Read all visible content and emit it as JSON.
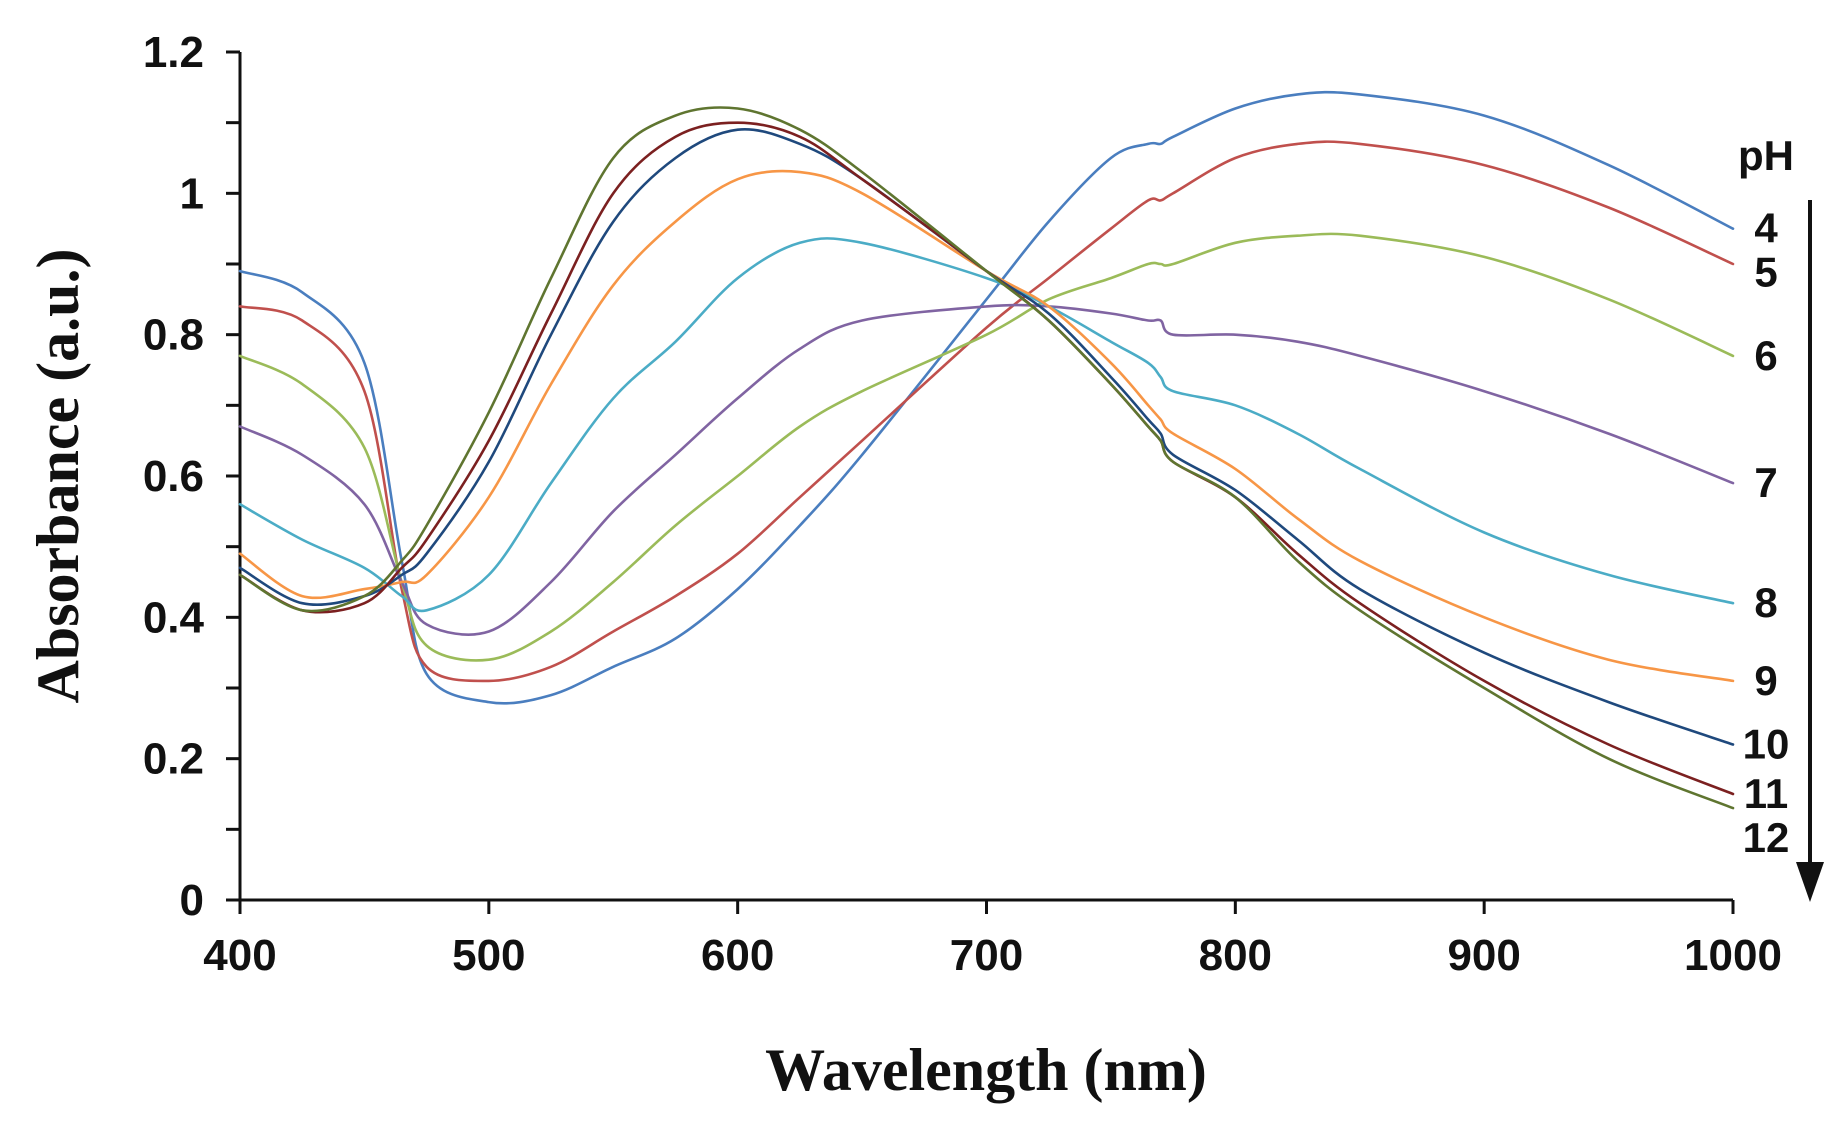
{
  "chart_data": {
    "type": "line",
    "title": "",
    "xlabel": "Wavelength (nm)",
    "ylabel": "Absorbance (a.u.)",
    "xlim": [
      400,
      1000
    ],
    "ylim": [
      0,
      1.2
    ],
    "xticks": [
      400,
      500,
      600,
      700,
      800,
      900,
      1000
    ],
    "xtick_labels": [
      "400",
      "500",
      "600",
      "700",
      "800",
      "900",
      "1000"
    ],
    "yticks": [
      0,
      0.2,
      0.4,
      0.6,
      0.8,
      1,
      1.2
    ],
    "ytick_labels": [
      "0",
      "0.2",
      "0.4",
      "0.6",
      "0.8",
      "1",
      "1.2"
    ],
    "grid": false,
    "legend_title": "pH",
    "legend_placement": "right",
    "x": [
      400,
      425,
      450,
      465,
      475,
      500,
      525,
      550,
      575,
      600,
      625,
      650,
      700,
      725,
      750,
      765,
      770,
      775,
      800,
      825,
      850,
      900,
      950,
      1000
    ],
    "series": [
      {
        "name": "4",
        "color": "#4a7ebf",
        "values": [
          0.89,
          0.86,
          0.76,
          0.48,
          0.32,
          0.28,
          0.29,
          0.33,
          0.37,
          0.44,
          0.53,
          0.63,
          0.85,
          0.96,
          1.05,
          1.07,
          1.07,
          1.08,
          1.12,
          1.14,
          1.14,
          1.11,
          1.04,
          0.95
        ]
      },
      {
        "name": "5",
        "color": "#c0504d",
        "values": [
          0.84,
          0.82,
          0.72,
          0.44,
          0.33,
          0.31,
          0.33,
          0.38,
          0.43,
          0.49,
          0.57,
          0.65,
          0.81,
          0.88,
          0.95,
          0.99,
          0.99,
          1.0,
          1.05,
          1.07,
          1.07,
          1.04,
          0.98,
          0.9
        ]
      },
      {
        "name": "6",
        "color": "#9bbb59",
        "values": [
          0.77,
          0.73,
          0.64,
          0.45,
          0.36,
          0.34,
          0.38,
          0.45,
          0.53,
          0.6,
          0.67,
          0.72,
          0.8,
          0.85,
          0.88,
          0.9,
          0.9,
          0.9,
          0.93,
          0.94,
          0.94,
          0.91,
          0.85,
          0.77
        ]
      },
      {
        "name": "7",
        "color": "#8064a2",
        "values": [
          0.67,
          0.63,
          0.56,
          0.45,
          0.39,
          0.38,
          0.45,
          0.55,
          0.63,
          0.71,
          0.78,
          0.82,
          0.84,
          0.84,
          0.83,
          0.82,
          0.82,
          0.8,
          0.8,
          0.79,
          0.77,
          0.72,
          0.66,
          0.59
        ]
      },
      {
        "name": "8",
        "color": "#4bacc6",
        "values": [
          0.56,
          0.51,
          0.47,
          0.43,
          0.41,
          0.46,
          0.59,
          0.71,
          0.79,
          0.88,
          0.93,
          0.93,
          0.88,
          0.84,
          0.79,
          0.76,
          0.74,
          0.72,
          0.7,
          0.66,
          0.61,
          0.52,
          0.46,
          0.42
        ]
      },
      {
        "name": "9",
        "color": "#f79646",
        "values": [
          0.49,
          0.43,
          0.44,
          0.45,
          0.46,
          0.57,
          0.73,
          0.87,
          0.96,
          1.02,
          1.03,
          1.0,
          0.89,
          0.84,
          0.76,
          0.7,
          0.68,
          0.66,
          0.61,
          0.54,
          0.48,
          0.4,
          0.34,
          0.31
        ]
      },
      {
        "name": "10",
        "color": "#1f497d",
        "values": [
          0.47,
          0.42,
          0.43,
          0.46,
          0.49,
          0.62,
          0.8,
          0.96,
          1.05,
          1.09,
          1.07,
          1.02,
          0.89,
          0.83,
          0.74,
          0.68,
          0.66,
          0.63,
          0.58,
          0.51,
          0.44,
          0.35,
          0.28,
          0.22
        ]
      },
      {
        "name": "11",
        "color": "#7b2020",
        "values": [
          0.46,
          0.41,
          0.42,
          0.47,
          0.51,
          0.65,
          0.83,
          1.0,
          1.08,
          1.1,
          1.08,
          1.02,
          0.89,
          0.82,
          0.73,
          0.67,
          0.65,
          0.62,
          0.57,
          0.49,
          0.42,
          0.31,
          0.22,
          0.15
        ]
      },
      {
        "name": "12",
        "color": "#5f7530",
        "values": [
          0.46,
          0.41,
          0.43,
          0.48,
          0.53,
          0.69,
          0.88,
          1.05,
          1.11,
          1.12,
          1.09,
          1.03,
          0.89,
          0.82,
          0.73,
          0.67,
          0.65,
          0.62,
          0.57,
          0.48,
          0.41,
          0.3,
          0.2,
          0.13
        ]
      }
    ],
    "annotations": [
      {
        "text": "pH",
        "kind": "legend-title"
      },
      {
        "text": "↓",
        "kind": "trend-arrow",
        "meaning": "increasing pH from 4 to 12"
      }
    ]
  }
}
